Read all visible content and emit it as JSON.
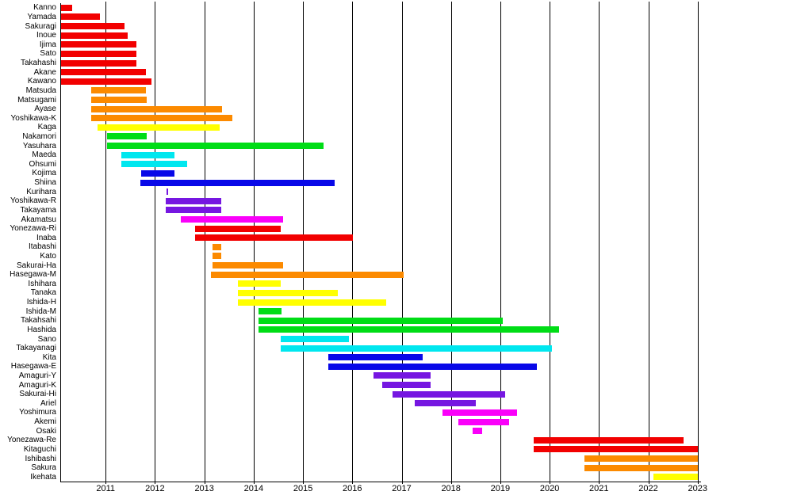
{
  "chart_data": {
    "type": "bar",
    "subtype": "gantt-timeline",
    "title": "",
    "xlabel": "",
    "ylabel": "",
    "xlim": [
      2010.08,
      2023.02
    ],
    "x_ticks": [
      "2011",
      "2012",
      "2013",
      "2014",
      "2015",
      "2016",
      "2017",
      "2018",
      "2019",
      "2020",
      "2021",
      "2022",
      "2023"
    ],
    "grid": "vertical",
    "legend_position": "none",
    "palette": {
      "red": "#f20000",
      "orange": "#fc8a00",
      "yellow": "#ffff00",
      "green": "#00dd16",
      "cyan": "#00e7ef",
      "blue": "#0808e8",
      "purple": "#7617e1",
      "magenta": "#fa00fa"
    },
    "rows": [
      {
        "label": "Kanno",
        "start": 2010.1,
        "end": 2010.33,
        "color": "red"
      },
      {
        "label": "Yamada",
        "start": 2010.1,
        "end": 2010.89,
        "color": "red"
      },
      {
        "label": "Sakuragi",
        "start": 2010.1,
        "end": 2011.39,
        "color": "red"
      },
      {
        "label": "Inoue",
        "start": 2010.1,
        "end": 2011.45,
        "color": "red"
      },
      {
        "label": "Ijima",
        "start": 2010.1,
        "end": 2011.63,
        "color": "red"
      },
      {
        "label": "Sato",
        "start": 2010.1,
        "end": 2011.63,
        "color": "red"
      },
      {
        "label": "Takahashi",
        "start": 2010.1,
        "end": 2011.63,
        "color": "red"
      },
      {
        "label": "Akane",
        "start": 2010.1,
        "end": 2011.81,
        "color": "red"
      },
      {
        "label": "Kawano",
        "start": 2010.1,
        "end": 2011.93,
        "color": "red"
      },
      {
        "label": "Matsuda",
        "start": 2010.7,
        "end": 2011.82,
        "color": "orange"
      },
      {
        "label": "Matsugami",
        "start": 2010.7,
        "end": 2011.83,
        "color": "orange"
      },
      {
        "label": "Ayase",
        "start": 2010.7,
        "end": 2013.36,
        "color": "orange"
      },
      {
        "label": "Yoshikawa-K",
        "start": 2010.7,
        "end": 2013.57,
        "color": "orange"
      },
      {
        "label": "Kaga",
        "start": 2010.83,
        "end": 2013.31,
        "color": "yellow"
      },
      {
        "label": "Nakamori",
        "start": 2011.02,
        "end": 2011.83,
        "color": "green"
      },
      {
        "label": "Yasuhara",
        "start": 2011.02,
        "end": 2015.41,
        "color": "green"
      },
      {
        "label": "Maeda",
        "start": 2011.32,
        "end": 2012.4,
        "color": "cyan"
      },
      {
        "label": "Ohsumi",
        "start": 2011.32,
        "end": 2012.66,
        "color": "cyan"
      },
      {
        "label": "Kojima",
        "start": 2011.72,
        "end": 2012.4,
        "color": "blue"
      },
      {
        "label": "Shiina",
        "start": 2011.7,
        "end": 2015.65,
        "color": "blue"
      },
      {
        "label": "Kurihara",
        "start": 2012.23,
        "end": 2012.27,
        "color": "purple"
      },
      {
        "label": "Yoshikawa-R",
        "start": 2012.22,
        "end": 2013.35,
        "color": "purple"
      },
      {
        "label": "Takayama",
        "start": 2012.22,
        "end": 2013.34,
        "color": "purple"
      },
      {
        "label": "Akamatsu",
        "start": 2012.52,
        "end": 2014.6,
        "color": "magenta"
      },
      {
        "label": "Yonezawa-Ri",
        "start": 2012.81,
        "end": 2014.55,
        "color": "red"
      },
      {
        "label": "Inaba",
        "start": 2012.81,
        "end": 2016.02,
        "color": "red"
      },
      {
        "label": "Itabashi",
        "start": 2013.16,
        "end": 2013.35,
        "color": "orange"
      },
      {
        "label": "Kato",
        "start": 2013.16,
        "end": 2013.35,
        "color": "orange"
      },
      {
        "label": "Sakurai-Ha",
        "start": 2013.16,
        "end": 2014.59,
        "color": "orange"
      },
      {
        "label": "Hasegawa-M",
        "start": 2013.13,
        "end": 2017.04,
        "color": "orange"
      },
      {
        "label": "Ishihara",
        "start": 2013.68,
        "end": 2014.55,
        "color": "yellow"
      },
      {
        "label": "Tanaka",
        "start": 2013.68,
        "end": 2015.7,
        "color": "yellow"
      },
      {
        "label": "Ishida-H",
        "start": 2013.68,
        "end": 2016.69,
        "color": "yellow"
      },
      {
        "label": "Ishida-M",
        "start": 2014.1,
        "end": 2014.56,
        "color": "green"
      },
      {
        "label": "Takahsahi",
        "start": 2014.1,
        "end": 2019.05,
        "color": "green"
      },
      {
        "label": "Hashida",
        "start": 2014.1,
        "end": 2020.19,
        "color": "green"
      },
      {
        "label": "Sano",
        "start": 2014.55,
        "end": 2015.93,
        "color": "cyan"
      },
      {
        "label": "Takayanagi",
        "start": 2014.55,
        "end": 2020.05,
        "color": "cyan"
      },
      {
        "label": "Kita",
        "start": 2015.51,
        "end": 2017.42,
        "color": "blue"
      },
      {
        "label": "Hasegawa-E",
        "start": 2015.51,
        "end": 2019.74,
        "color": "blue"
      },
      {
        "label": "Amaguri-Y",
        "start": 2016.43,
        "end": 2017.59,
        "color": "purple"
      },
      {
        "label": "Amaguri-K",
        "start": 2016.6,
        "end": 2017.59,
        "color": "purple"
      },
      {
        "label": "Sakurai-Hi",
        "start": 2016.82,
        "end": 2019.1,
        "color": "purple"
      },
      {
        "label": "Ariel",
        "start": 2017.26,
        "end": 2018.51,
        "color": "purple"
      },
      {
        "label": "Yoshimura",
        "start": 2017.83,
        "end": 2019.34,
        "color": "magenta"
      },
      {
        "label": "Akemi",
        "start": 2018.15,
        "end": 2019.17,
        "color": "magenta"
      },
      {
        "label": "Osaki",
        "start": 2018.43,
        "end": 2018.63,
        "color": "magenta"
      },
      {
        "label": "Yonezawa-Re",
        "start": 2019.68,
        "end": 2022.72,
        "color": "red"
      },
      {
        "label": "Kitaguchi",
        "start": 2019.68,
        "end": 2023.0,
        "color": "red"
      },
      {
        "label": "Ishibashi",
        "start": 2020.71,
        "end": 2023.0,
        "color": "orange"
      },
      {
        "label": "Sakura",
        "start": 2020.71,
        "end": 2023.0,
        "color": "orange"
      },
      {
        "label": "Ikehata",
        "start": 2022.1,
        "end": 2023.0,
        "color": "yellow"
      }
    ]
  }
}
